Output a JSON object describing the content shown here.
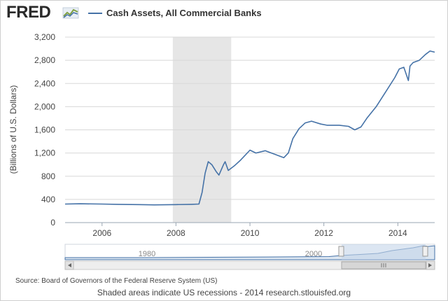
{
  "logo": {
    "text": "FRED",
    "mark_icon": "fred-chart-mark-icon"
  },
  "legend": {
    "label": "Cash Assets, All Commercial Banks",
    "color": "#4572a7"
  },
  "source": "Source: Board of Governors of the Federal Reserve System (US)",
  "note": "Shaded areas indicate US recessions - 2014 research.stlouisfed.org",
  "navigator": {
    "tick_labels": [
      "1980",
      "2000"
    ],
    "scrollbar_left_icon": "arrow-left-icon",
    "scrollbar_right_icon": "arrow-right-icon",
    "grip_icon": "grip-icon"
  },
  "chart_data": {
    "type": "line",
    "title": "",
    "ylabel": "(Billions of U.S. Dollars)",
    "xlabel": "",
    "xlim": [
      "2005-01-01",
      "2014-12-31"
    ],
    "ylim": [
      0,
      3200
    ],
    "yticks": [
      0,
      400,
      800,
      1200,
      1600,
      2000,
      2400,
      2800,
      3200
    ],
    "ytick_labels": [
      "0",
      "400",
      "800",
      "1,200",
      "1,600",
      "2,000",
      "2,400",
      "2,800",
      "3,200"
    ],
    "xticks": [
      "2006-01-01",
      "2008-01-01",
      "2010-01-01",
      "2012-01-01",
      "2014-01-01"
    ],
    "xtick_labels": [
      "2006",
      "2008",
      "2010",
      "2012",
      "2014"
    ],
    "grid": true,
    "recessions": [
      {
        "start": "2007-12-01",
        "end": "2009-06-30"
      }
    ],
    "series": [
      {
        "name": "Cash Assets, All Commercial Banks",
        "color": "#4572a7",
        "points": [
          [
            "2005-01-01",
            320
          ],
          [
            "2005-06-01",
            325
          ],
          [
            "2006-01-01",
            320
          ],
          [
            "2006-06-01",
            315
          ],
          [
            "2007-01-01",
            310
          ],
          [
            "2007-06-01",
            305
          ],
          [
            "2008-01-01",
            310
          ],
          [
            "2008-06-01",
            315
          ],
          [
            "2008-08-15",
            320
          ],
          [
            "2008-09-15",
            520
          ],
          [
            "2008-10-15",
            850
          ],
          [
            "2008-11-15",
            1050
          ],
          [
            "2008-12-20",
            1000
          ],
          [
            "2009-02-01",
            880
          ],
          [
            "2009-03-01",
            820
          ],
          [
            "2009-04-15",
            1000
          ],
          [
            "2009-05-01",
            1050
          ],
          [
            "2009-06-01",
            900
          ],
          [
            "2009-08-01",
            980
          ],
          [
            "2009-10-01",
            1080
          ],
          [
            "2010-01-01",
            1250
          ],
          [
            "2010-03-01",
            1200
          ],
          [
            "2010-06-01",
            1240
          ],
          [
            "2010-09-01",
            1180
          ],
          [
            "2010-12-01",
            1120
          ],
          [
            "2011-01-15",
            1200
          ],
          [
            "2011-03-01",
            1450
          ],
          [
            "2011-05-01",
            1620
          ],
          [
            "2011-07-01",
            1720
          ],
          [
            "2011-09-01",
            1750
          ],
          [
            "2011-12-01",
            1700
          ],
          [
            "2012-02-01",
            1680
          ],
          [
            "2012-06-01",
            1680
          ],
          [
            "2012-09-01",
            1660
          ],
          [
            "2012-11-01",
            1600
          ],
          [
            "2013-01-01",
            1650
          ],
          [
            "2013-03-01",
            1800
          ],
          [
            "2013-06-01",
            2000
          ],
          [
            "2013-09-01",
            2250
          ],
          [
            "2013-12-01",
            2500
          ],
          [
            "2014-01-15",
            2650
          ],
          [
            "2014-03-01",
            2680
          ],
          [
            "2014-04-15",
            2450
          ],
          [
            "2014-05-01",
            2700
          ],
          [
            "2014-06-01",
            2760
          ],
          [
            "2014-08-01",
            2800
          ],
          [
            "2014-10-01",
            2900
          ],
          [
            "2014-11-15",
            2960
          ],
          [
            "2014-12-31",
            2940
          ]
        ]
      }
    ]
  }
}
